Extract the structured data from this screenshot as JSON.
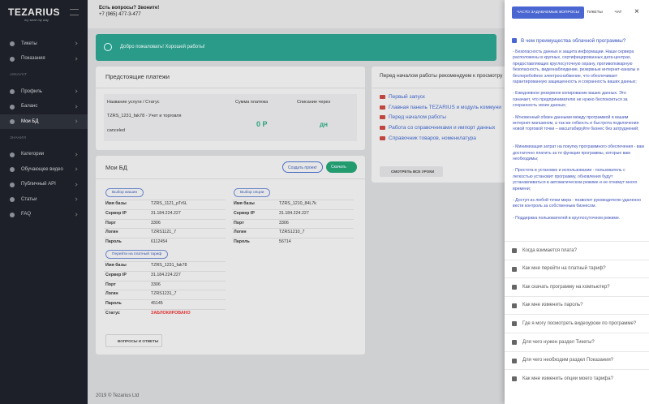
{
  "sidebar": {
    "logo": "TEZARIUS",
    "tagline": "my store my way",
    "sections": [
      {
        "items": [
          "Тикеты",
          "Показания"
        ]
      },
      {
        "title": "АККАУНТ",
        "items": [
          "Профиль",
          "Баланс",
          "Мои БД"
        ]
      },
      {
        "title": "ЗНАНИЯ",
        "items": [
          "Категории",
          "Обучающее видео",
          "Публичный API",
          "Статьи",
          "FAQ"
        ]
      }
    ]
  },
  "header": {
    "question": "Есть вопросы? Звоните!",
    "phone": "+7 (965) 477-3-477"
  },
  "alert": "Добро пожаловать! Хорошей работы!",
  "payments": {
    "title": "Предстоящие платежи",
    "columns": [
      "Название услуги / Статус",
      "Сумма платежа",
      "Списание через"
    ],
    "rows": [
      {
        "service": "TZRS_1231_fak78 - Учет и торговля",
        "status": "canceled",
        "amount": "0 Р",
        "due": "дн"
      }
    ]
  },
  "lessons": {
    "title": "Перед началом работы рекомендуем к просмотру",
    "links": [
      "Первый запуск",
      "Главная панель TEZARIUS и модуль коммуни",
      "Перед началом работы",
      "Работа со справочниками и импорт данных",
      "Справочник товаров, номенклатура"
    ],
    "button": "СМОТРЕТЬ ВСЕ УРОКИ"
  },
  "databases": {
    "title": "Мои БД",
    "create_button": "Создать проект",
    "download_button": "Скачать",
    "items": [
      {
        "tag": "Выбор машин",
        "fields": [
          [
            "Имя базы",
            "TZRS_1121_pTr6L"
          ],
          [
            "Сервер IP",
            "31.184.224.227"
          ],
          [
            "Порт",
            "3306"
          ],
          [
            "Логин",
            "TZRS1121_7"
          ],
          [
            "Пароль",
            "6112454"
          ]
        ]
      },
      {
        "tag": "Выбор опции",
        "fields": [
          [
            "Имя базы",
            "TZRS_1210_84L7k"
          ],
          [
            "Сервер IP",
            "31.184.224.227"
          ],
          [
            "Порт",
            "3306"
          ],
          [
            "Логин",
            "TZRS1210_7"
          ],
          [
            "Пароль",
            "56714"
          ]
        ]
      },
      {
        "tag": "Перейти на платный тариф",
        "fields": [
          [
            "Имя базы",
            "TZRS_1231_fak78"
          ],
          [
            "Сервер IP",
            "31.184.224.227"
          ],
          [
            "Порт",
            "3306"
          ],
          [
            "Логин",
            "TZRS1231_7"
          ],
          [
            "Пароль",
            "45145"
          ],
          [
            "Статус",
            "ЗАБЛОКИРОВАНО"
          ]
        ]
      }
    ],
    "faq_button": "ВОПРОСЫ И ОТВЕТЫ"
  },
  "footer": "2019 © Tezarius Ltd",
  "panel": {
    "tabs": [
      "ЧАСТО ЗАДАВАЕМЫЕ ВОПРОСЫ",
      "ТИКЕТЫ",
      "ЧАТ"
    ],
    "close": "×",
    "open_question": "В чем преимущества облачной программы?",
    "answer": [
      "- Безопасность данных и защита информации. Наши сервера расположены в крупных, сертифицированных дата-центрах, предоставляющих круглосуточную охрану, противопожарную безопасность, видеонаблюдение, резервные интернет-каналы и бесперебойное электроснабжение, что обеспечивает гарантированную защищенность и сохранность ваших данных;",
      "- Ежедневное резервное копирование ваших данных. Это означает, что предпринимателю не нужно беспокоиться за сохранность своих данных;",
      "- Мгновенный обмен данными между программой и вашим интернет-магазином, а так же гибкость и быстрота подключения новой торговой точки – масштабируйте бизнес без затруднений;",
      "- Минимизация затрат на покупку программного обеспечения - вам достаточно платить за те функции программы, которые вам необходимы;",
      "- Простота в установке и использовании - пользователь с легкостью установит программу, обновления будут устанавливаться в автоматическом режиме и не отнимут много времени;",
      "- Доступ из любой точки мира - позволит руководителю удаленно вести контроль за собственным бизнесом.",
      "- Поддержка пользователей в круглосуточном режиме."
    ],
    "questions": [
      "Когда взимается плата?",
      "Как мне перейти на платный тариф?",
      "Как скачать программу на компьютер?",
      "Как мне изменить пароль?",
      "Где я могу посмотреть видеоуроки по программе?",
      "Для чего нужен раздел Тикеты?",
      "Для чего необходим раздел Показания?",
      "Как мне изменить опции моего тарифа?"
    ]
  }
}
